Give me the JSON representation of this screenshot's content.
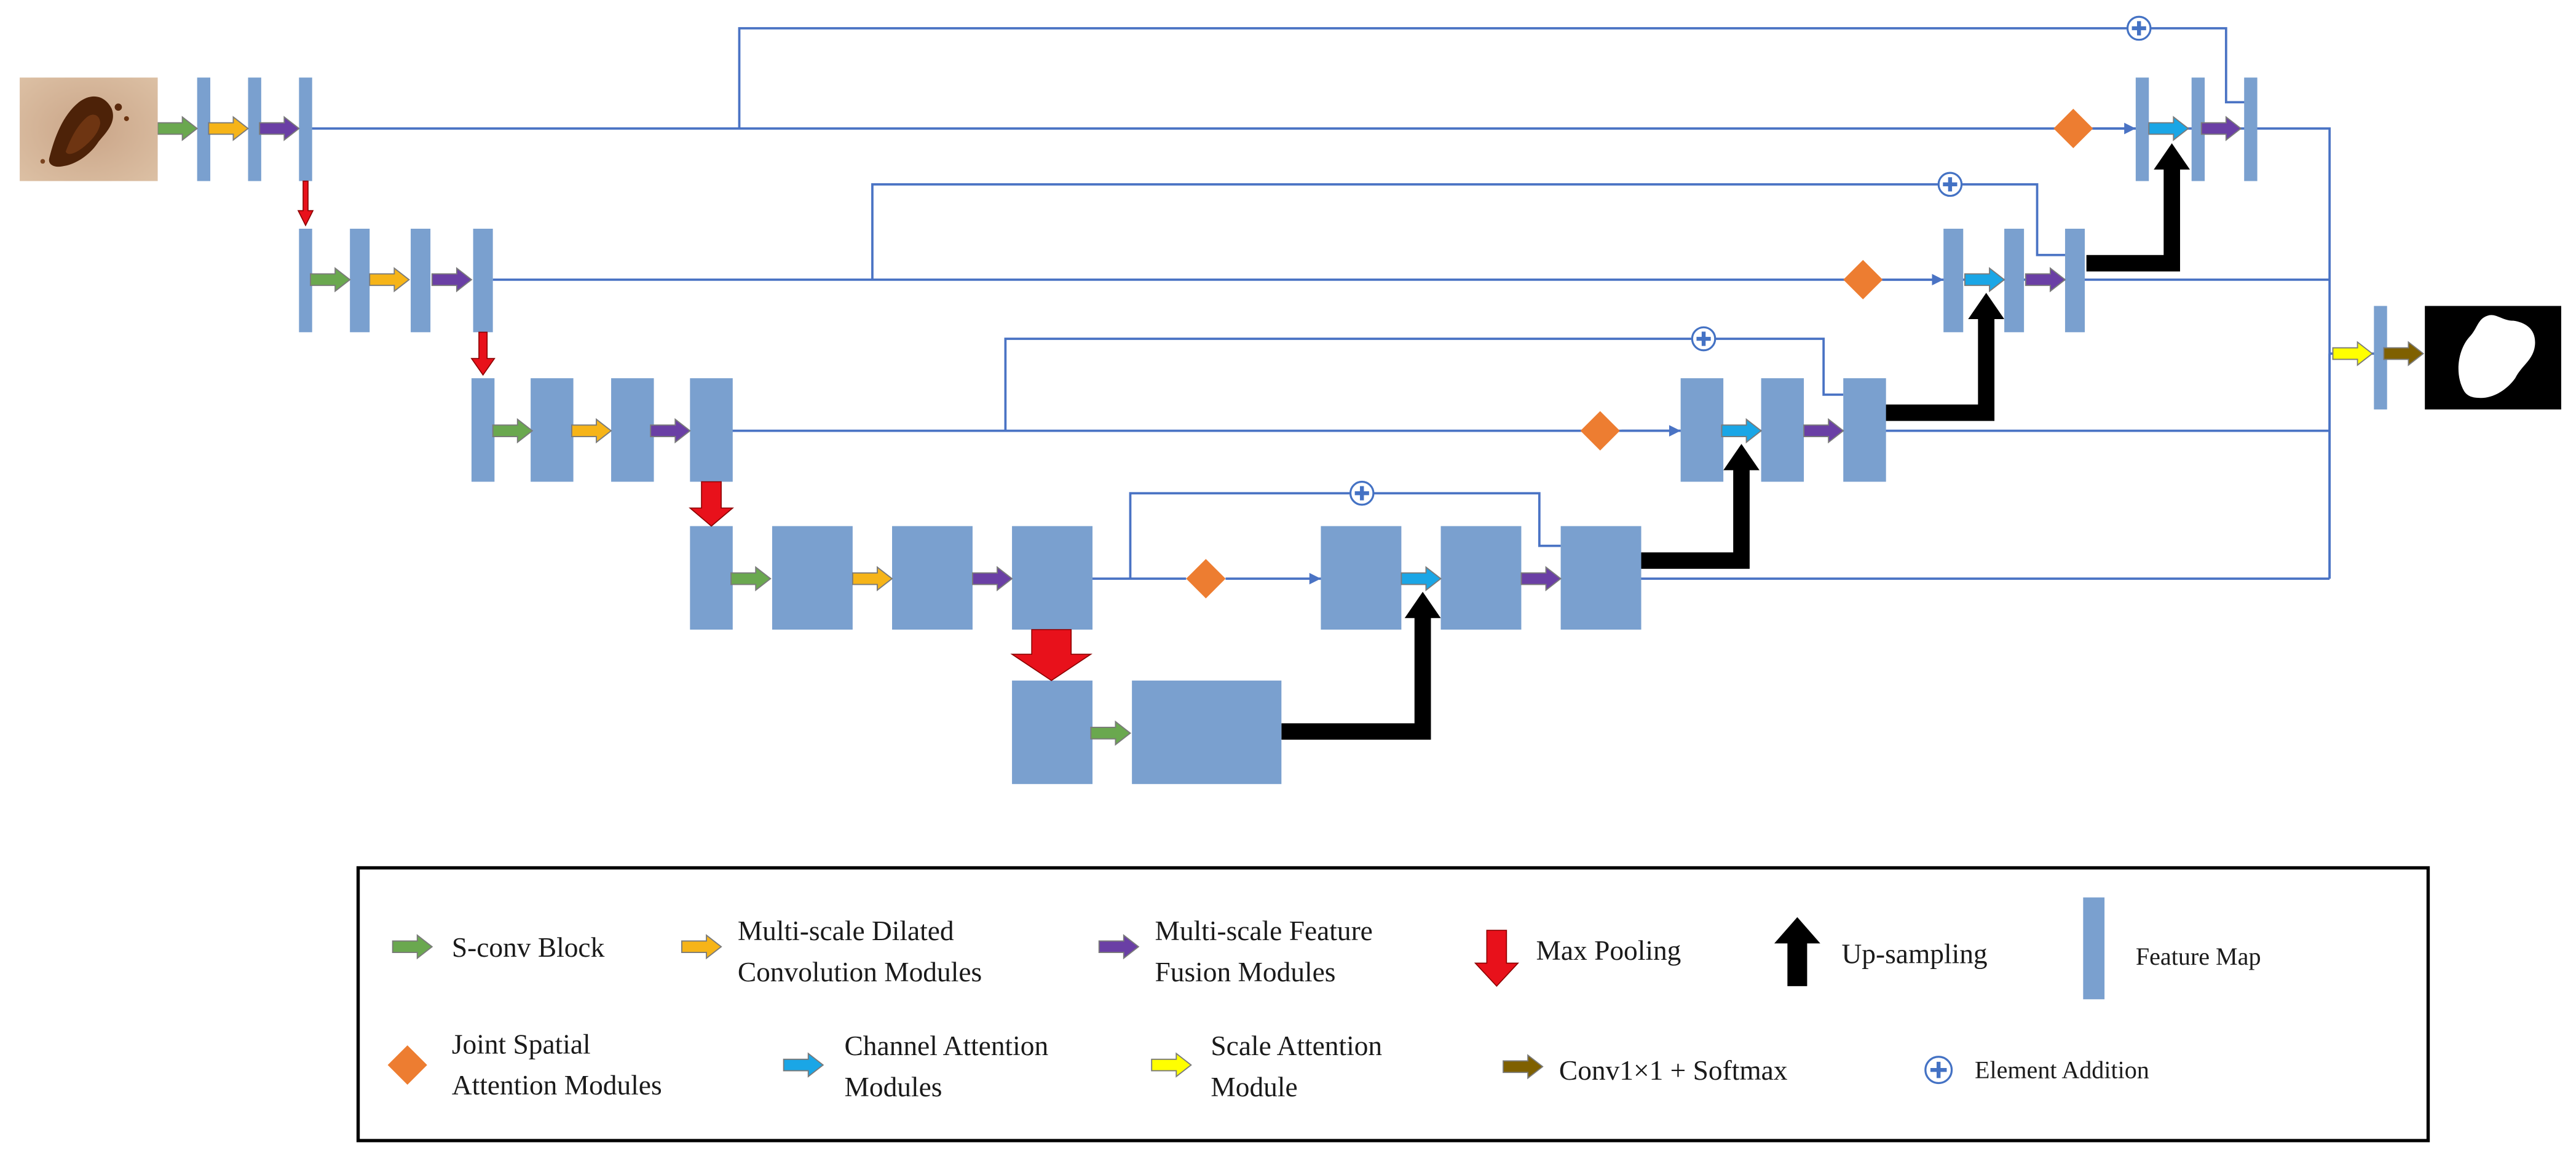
{
  "colors": {
    "feature_map": "#7aa0cf",
    "connection_line": "#4a73c4",
    "s_conv": "#6aa84f",
    "dilated_conv": "#f6b418",
    "feature_fusion": "#6a3fa5",
    "max_pooling": "#e8111b",
    "up_sampling": "#000000",
    "joint_spatial_attention": "#ed7d31",
    "channel_attention": "#1aa6e6",
    "scale_attention": "#ffff00",
    "conv_softmax": "#7f6000",
    "element_addition": "#4472c4",
    "legend_border": "#000000"
  },
  "images": {
    "input": "skin-lesion-input-image",
    "output": "segmentation-mask-output-image"
  },
  "legend": {
    "s_conv": [
      "S-conv Block"
    ],
    "dilated_conv": [
      "Multi-scale Dilated",
      "Convolution Modules"
    ],
    "feature_fusion": [
      "Multi-scale Feature",
      "Fusion Modules"
    ],
    "max_pooling": [
      "Max Pooling"
    ],
    "up_sampling": [
      "Up-sampling"
    ],
    "feature_map": [
      "Feature Map"
    ],
    "joint_spatial_attention": [
      "Joint Spatial",
      "Attention Modules"
    ],
    "channel_attention": [
      "Channel Attention",
      "Modules"
    ],
    "scale_attention": [
      "Scale Attention",
      "Module"
    ],
    "conv_softmax": [
      "Conv1×1 + Softmax"
    ],
    "element_addition": [
      "Element Addition"
    ]
  }
}
